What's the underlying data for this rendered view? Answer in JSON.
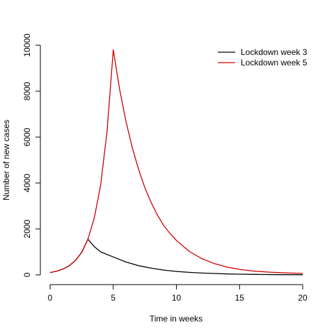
{
  "chart_data": {
    "type": "line",
    "title": "",
    "xlabel": "Time in weeks",
    "ylabel": "Number of new cases",
    "xlim": [
      0,
      20
    ],
    "ylim": [
      0,
      10000
    ],
    "x_ticks": [
      0,
      5,
      10,
      15,
      20
    ],
    "y_ticks": [
      0,
      2000,
      4000,
      6000,
      8000,
      10000
    ],
    "grid": false,
    "legend_position": "top-right",
    "series": [
      {
        "name": "Lockdown week 3",
        "color": "#000000",
        "x": [
          0,
          0.5,
          1,
          1.5,
          2,
          2.5,
          3,
          3.5,
          4,
          5,
          6,
          7,
          8,
          9,
          10,
          11,
          12,
          13,
          14,
          15,
          16,
          17,
          18,
          19,
          20
        ],
        "y": [
          100,
          160,
          250,
          390,
          620,
          980,
          1550,
          1230,
          1000,
          780,
          560,
          400,
          290,
          210,
          150,
          110,
          80,
          60,
          40,
          30,
          20,
          15,
          10,
          8,
          5
        ]
      },
      {
        "name": "Lockdown week 5",
        "color": "#cc0000",
        "x": [
          0,
          0.5,
          1,
          1.5,
          2,
          2.5,
          3,
          3.5,
          4,
          4.5,
          5,
          5.5,
          6,
          6.5,
          7,
          7.5,
          8,
          8.5,
          9,
          9.5,
          10,
          11,
          12,
          13,
          14,
          15,
          16,
          17,
          18,
          19,
          20
        ],
        "y": [
          100,
          160,
          250,
          390,
          620,
          980,
          1560,
          2480,
          3900,
          6200,
          9800,
          8100,
          6700,
          5550,
          4600,
          3800,
          3150,
          2600,
          2150,
          1800,
          1500,
          1030,
          710,
          490,
          340,
          240,
          170,
          130,
          100,
          80,
          65
        ]
      }
    ]
  }
}
